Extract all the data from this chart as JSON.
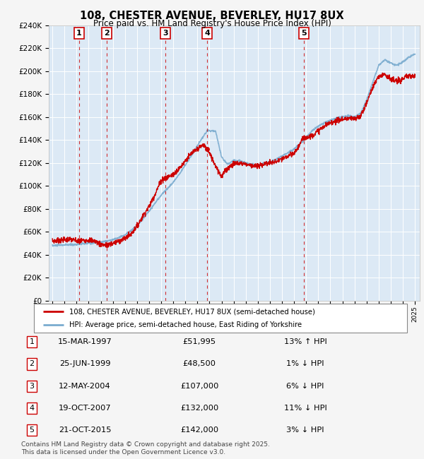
{
  "title": "108, CHESTER AVENUE, BEVERLEY, HU17 8UX",
  "subtitle": "Price paid vs. HM Land Registry's House Price Index (HPI)",
  "ylim": [
    0,
    240000
  ],
  "yticks": [
    0,
    20000,
    40000,
    60000,
    80000,
    100000,
    120000,
    140000,
    160000,
    180000,
    200000,
    220000,
    240000
  ],
  "legend_line1": "108, CHESTER AVENUE, BEVERLEY, HU17 8UX (semi-detached house)",
  "legend_line2": "HPI: Average price, semi-detached house, East Riding of Yorkshire",
  "footer": "Contains HM Land Registry data © Crown copyright and database right 2025.\nThis data is licensed under the Open Government Licence v3.0.",
  "sales": [
    {
      "num": 1,
      "date": "15-MAR-1997",
      "price": 51995,
      "pct": "13%",
      "dir": "↑",
      "year": 1997.21
    },
    {
      "num": 2,
      "date": "25-JUN-1999",
      "price": 48500,
      "pct": "1%",
      "dir": "↓",
      "year": 1999.49
    },
    {
      "num": 3,
      "date": "12-MAY-2004",
      "price": 107000,
      "pct": "6%",
      "dir": "↓",
      "year": 2004.36
    },
    {
      "num": 4,
      "date": "19-OCT-2007",
      "price": 132000,
      "pct": "11%",
      "dir": "↓",
      "year": 2007.8
    },
    {
      "num": 5,
      "date": "21-OCT-2015",
      "price": 142000,
      "pct": "3%",
      "dir": "↓",
      "year": 2015.8
    }
  ],
  "red_color": "#cc0000",
  "blue_color": "#7aabcf",
  "bg_color": "#dce9f5",
  "white": "#ffffff",
  "box_edge": "#cc0000",
  "xtick_start": 1995,
  "xtick_end": 2025
}
